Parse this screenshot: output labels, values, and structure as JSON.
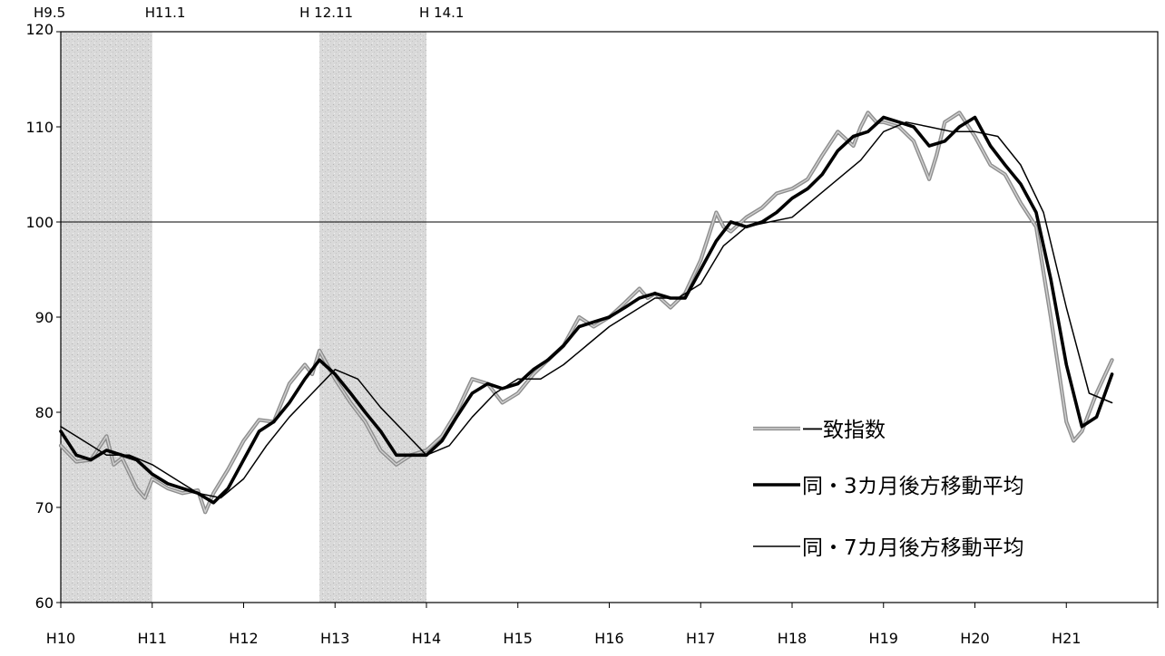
{
  "chart_data": {
    "type": "line",
    "title": "",
    "xlabel": "",
    "ylabel": "",
    "ylim": [
      60,
      120
    ],
    "yticks": [
      60,
      70,
      80,
      90,
      100,
      110,
      120
    ],
    "xticks": [
      "H10",
      "H11",
      "H12",
      "H13",
      "H14",
      "H15",
      "H16",
      "H17",
      "H18",
      "H19",
      "H20",
      "H21"
    ],
    "xrange_years": [
      10,
      22
    ],
    "reference_line": 100,
    "grid": false,
    "legend_position": "bottom-right",
    "colors": {
      "series1": "#9a9a9a",
      "series2": "#000000",
      "series3": "#000000",
      "shade": "#d9d9d9"
    },
    "shaded_periods": [
      {
        "start_label": "H9.5",
        "end_label": "H11.1",
        "start": 10.0,
        "end": 11.0
      },
      {
        "start_label": "H 12.11",
        "end_label": "H 14.1",
        "start": 12.83,
        "end": 14.0
      }
    ],
    "series": [
      {
        "name": "一致指数",
        "style": "grey-double",
        "x": [
          10.0,
          10.17,
          10.33,
          10.5,
          10.58,
          10.67,
          10.83,
          10.92,
          11.0,
          11.17,
          11.33,
          11.5,
          11.58,
          11.67,
          11.83,
          12.0,
          12.17,
          12.33,
          12.5,
          12.67,
          12.75,
          12.83,
          13.0,
          13.17,
          13.33,
          13.5,
          13.67,
          13.75,
          13.83,
          14.0,
          14.17,
          14.33,
          14.5,
          14.67,
          14.83,
          15.0,
          15.17,
          15.33,
          15.5,
          15.67,
          15.75,
          15.83,
          16.0,
          16.17,
          16.33,
          16.42,
          16.5,
          16.67,
          16.83,
          17.0,
          17.17,
          17.25,
          17.33,
          17.5,
          17.67,
          17.83,
          18.0,
          18.17,
          18.33,
          18.5,
          18.67,
          18.75,
          18.83,
          18.92,
          19.0,
          19.17,
          19.33,
          19.5,
          19.58,
          19.67,
          19.83,
          20.0,
          20.17,
          20.33,
          20.5,
          20.67,
          20.83,
          21.0,
          21.08,
          21.17,
          21.33,
          21.5
        ],
        "values": [
          76.5,
          74.8,
          75.0,
          77.5,
          74.5,
          75.2,
          72.0,
          71.0,
          73.0,
          72.0,
          71.5,
          71.8,
          69.5,
          71.5,
          74.0,
          77.0,
          79.2,
          79.0,
          83.0,
          85.0,
          84.0,
          86.5,
          83.5,
          81.0,
          79.0,
          76.0,
          74.5,
          75.0,
          75.5,
          76.0,
          77.5,
          80.0,
          83.5,
          83.0,
          81.0,
          82.0,
          84.0,
          85.5,
          87.0,
          90.0,
          89.5,
          89.0,
          90.0,
          91.5,
          93.0,
          92.0,
          92.5,
          91.0,
          92.5,
          96.0,
          101.0,
          99.5,
          99.0,
          100.5,
          101.5,
          103.0,
          103.5,
          104.5,
          107.0,
          109.5,
          108.0,
          110.0,
          111.5,
          110.5,
          110.5,
          110.0,
          108.5,
          104.5,
          107.0,
          110.5,
          111.5,
          109.0,
          106.0,
          105.0,
          102.0,
          99.5,
          90.0,
          79.0,
          77.0,
          78.0,
          82.0,
          85.5
        ]
      },
      {
        "name": "同・3カ月後方移動平均",
        "style": "thick",
        "x": [
          10.0,
          10.17,
          10.33,
          10.5,
          10.67,
          10.83,
          11.0,
          11.17,
          11.33,
          11.5,
          11.67,
          11.83,
          12.0,
          12.17,
          12.33,
          12.5,
          12.67,
          12.83,
          13.0,
          13.17,
          13.33,
          13.5,
          13.67,
          13.83,
          14.0,
          14.17,
          14.33,
          14.5,
          14.67,
          14.83,
          15.0,
          15.17,
          15.33,
          15.5,
          15.67,
          15.83,
          16.0,
          16.17,
          16.33,
          16.5,
          16.67,
          16.83,
          17.0,
          17.17,
          17.33,
          17.5,
          17.67,
          17.83,
          18.0,
          18.17,
          18.33,
          18.5,
          18.67,
          18.83,
          19.0,
          19.17,
          19.33,
          19.5,
          19.67,
          19.83,
          20.0,
          20.17,
          20.33,
          20.5,
          20.67,
          20.83,
          21.0,
          21.17,
          21.33,
          21.5
        ],
        "values": [
          78.0,
          75.5,
          75.0,
          76.0,
          75.5,
          75.0,
          73.5,
          72.5,
          72.0,
          71.5,
          70.5,
          72.0,
          75.0,
          78.0,
          79.0,
          81.0,
          83.5,
          85.5,
          84.0,
          82.0,
          80.0,
          78.0,
          75.5,
          75.5,
          75.5,
          77.0,
          79.5,
          82.0,
          83.0,
          82.5,
          83.0,
          84.5,
          85.5,
          87.0,
          89.0,
          89.5,
          90.0,
          91.0,
          92.0,
          92.5,
          92.0,
          92.0,
          95.0,
          98.0,
          100.0,
          99.5,
          100.0,
          101.0,
          102.5,
          103.5,
          105.0,
          107.5,
          109.0,
          109.5,
          111.0,
          110.5,
          110.0,
          108.0,
          108.5,
          110.0,
          111.0,
          108.0,
          106.0,
          104.0,
          101.0,
          94.0,
          85.0,
          78.5,
          79.5,
          84.0
        ]
      },
      {
        "name": "同・7カ月後方移動平均",
        "style": "thin",
        "x": [
          10.0,
          10.25,
          10.5,
          10.75,
          11.0,
          11.25,
          11.5,
          11.75,
          12.0,
          12.25,
          12.5,
          12.75,
          13.0,
          13.25,
          13.5,
          13.75,
          14.0,
          14.25,
          14.5,
          14.75,
          15.0,
          15.25,
          15.5,
          15.75,
          16.0,
          16.25,
          16.5,
          16.75,
          17.0,
          17.25,
          17.5,
          17.75,
          18.0,
          18.25,
          18.5,
          18.75,
          19.0,
          19.25,
          19.5,
          19.75,
          20.0,
          20.25,
          20.5,
          20.75,
          21.0,
          21.25,
          21.5
        ],
        "values": [
          78.5,
          77.0,
          75.5,
          75.5,
          74.5,
          73.0,
          71.5,
          71.0,
          73.0,
          76.5,
          79.5,
          82.0,
          84.5,
          83.5,
          80.5,
          78.0,
          75.5,
          76.5,
          79.5,
          82.0,
          83.5,
          83.5,
          85.0,
          87.0,
          89.0,
          90.5,
          92.0,
          92.0,
          93.5,
          97.5,
          99.5,
          100.0,
          100.5,
          102.5,
          104.5,
          106.5,
          109.5,
          110.5,
          110.0,
          109.5,
          109.5,
          109.0,
          106.0,
          101.0,
          91.0,
          82.0,
          81.0
        ]
      }
    ]
  }
}
